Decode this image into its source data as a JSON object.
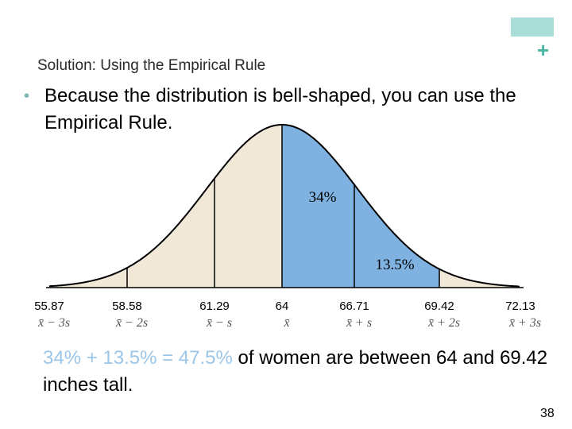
{
  "slide": {
    "subtitle": "Solution: Using the Empirical Rule",
    "bullet": "Because the distribution is bell-shaped, you can use the Empirical Rule.",
    "result_highlight": "34% + 13.5% = 47.5%",
    "result_rest": " of women are between 64 and 69.42 inches tall.",
    "page_number": "38",
    "plus_symbol": "+"
  },
  "figure": {
    "ticks": [
      {
        "value": "55.87",
        "symbol": "x̄ − 3s"
      },
      {
        "value": "58.58",
        "symbol": "x̄ − 2s"
      },
      {
        "value": "61.29",
        "symbol": "x̄ − s"
      },
      {
        "value": "64",
        "symbol": "x̄"
      },
      {
        "value": "66.71",
        "symbol": "x̄ + s"
      },
      {
        "value": "69.42",
        "symbol": "x̄ + 2s"
      },
      {
        "value": "72.13",
        "symbol": "x̄ + 3s"
      }
    ],
    "area_labels": [
      "34%",
      "13.5%"
    ],
    "shaded_from_tick": 3,
    "shaded_to_tick": 5,
    "colors": {
      "curve_fill": "#f1e8d8",
      "shaded_fill": "#7fb2e0",
      "result_highlight": "#9cc6e8",
      "accent": "#a9ddd7"
    }
  }
}
